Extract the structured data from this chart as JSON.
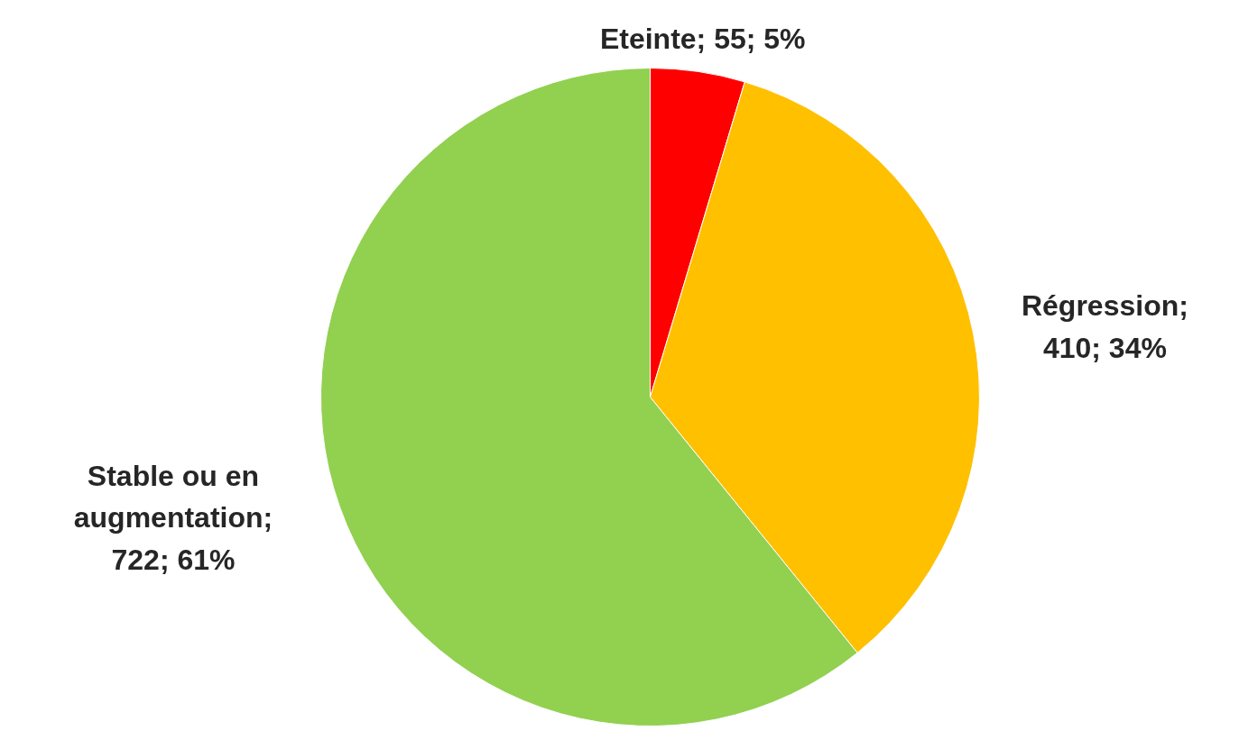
{
  "chart_data": {
    "type": "pie",
    "categories": [
      "Eteinte",
      "Régression",
      "Stable ou en augmentation"
    ],
    "values": [
      55,
      410,
      722
    ],
    "colors": [
      "#ff0000",
      "#ffc000",
      "#92d050"
    ],
    "value_labels": [
      "; 55; 5%",
      "; 410; 34%",
      "; 722; 61%"
    ],
    "legend": false
  }
}
